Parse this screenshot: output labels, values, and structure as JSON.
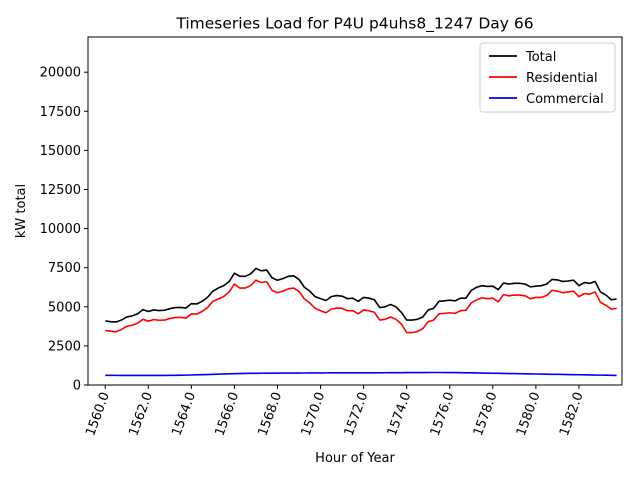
{
  "chart_data": {
    "type": "line",
    "title": "Timeseries Load for P4U p4uhs8_1247  Day 66",
    "xlabel": "Hour of Year",
    "ylabel": "kW total",
    "xlim": [
      1559.2,
      1584.0
    ],
    "ylim": [
      0,
      22250
    ],
    "xticks": [
      1560,
      1562,
      1564,
      1566,
      1568,
      1570,
      1572,
      1574,
      1576,
      1578,
      1580,
      1582
    ],
    "xtick_labels": [
      "1560.0",
      "1562.0",
      "1564.0",
      "1566.0",
      "1568.0",
      "1570.0",
      "1572.0",
      "1574.0",
      "1576.0",
      "1578.0",
      "1580.0",
      "1582.0"
    ],
    "yticks": [
      0,
      2500,
      5000,
      7500,
      10000,
      12500,
      15000,
      17500,
      20000
    ],
    "ytick_labels": [
      "0",
      "2500",
      "5000",
      "7500",
      "10000",
      "12500",
      "15000",
      "17500",
      "20000"
    ],
    "grid": false,
    "legend_position": "top-right",
    "x_start": 1560.0,
    "x_step": 0.25,
    "series": [
      {
        "name": "Total",
        "color": "#000000",
        "values": [
          4100,
          4050,
          4030,
          4150,
          4350,
          4420,
          4550,
          4820,
          4700,
          4800,
          4760,
          4780,
          4880,
          4950,
          4960,
          4920,
          5200,
          5180,
          5350,
          5600,
          6000,
          6200,
          6350,
          6600,
          7150,
          6950,
          6950,
          7100,
          7450,
          7300,
          7350,
          6850,
          6700,
          6800,
          6950,
          6980,
          6750,
          6250,
          6000,
          5650,
          5520,
          5400,
          5650,
          5720,
          5680,
          5520,
          5550,
          5350,
          5600,
          5550,
          5450,
          4950,
          5000,
          5150,
          5000,
          4650,
          4150,
          4150,
          4200,
          4350,
          4800,
          4900,
          5350,
          5380,
          5420,
          5380,
          5550,
          5550,
          6050,
          6250,
          6350,
          6300,
          6320,
          6100,
          6520,
          6450,
          6500,
          6500,
          6450,
          6280,
          6320,
          6350,
          6450,
          6750,
          6720,
          6620,
          6650,
          6700,
          6350,
          6550,
          6500,
          6620,
          5950,
          5750,
          5450,
          5500
        ]
      },
      {
        "name": "Residential",
        "color": "#ff0000",
        "values": [
          3480,
          3440,
          3400,
          3550,
          3750,
          3820,
          3950,
          4200,
          4080,
          4180,
          4140,
          4150,
          4250,
          4320,
          4320,
          4280,
          4550,
          4530,
          4700,
          4950,
          5350,
          5500,
          5650,
          5950,
          6450,
          6200,
          6200,
          6350,
          6700,
          6550,
          6600,
          6050,
          5900,
          6000,
          6150,
          6200,
          5980,
          5500,
          5250,
          4900,
          4750,
          4620,
          4850,
          4920,
          4900,
          4750,
          4750,
          4550,
          4800,
          4750,
          4650,
          4150,
          4200,
          4350,
          4200,
          3900,
          3350,
          3350,
          3420,
          3600,
          4050,
          4150,
          4550,
          4580,
          4620,
          4580,
          4750,
          4780,
          5250,
          5450,
          5580,
          5520,
          5550,
          5320,
          5780,
          5700,
          5750,
          5750,
          5700,
          5520,
          5600,
          5600,
          5720,
          6050,
          6000,
          5900,
          5950,
          6000,
          5650,
          5850,
          5800,
          5950,
          5280,
          5100,
          4850,
          4900
        ]
      },
      {
        "name": "Commercial",
        "color": "#0000ff",
        "values": [
          620,
          618,
          616,
          614,
          612,
          611,
          610,
          610,
          610,
          611,
          612,
          614,
          617,
          621,
          626,
          632,
          640,
          650,
          660,
          670,
          682,
          694,
          706,
          716,
          726,
          734,
          741,
          746,
          750,
          752,
          754,
          756,
          758,
          760,
          762,
          764,
          766,
          768,
          770,
          772,
          774,
          775,
          776,
          777,
          778,
          778,
          778,
          778,
          779,
          780,
          781,
          782,
          784,
          786,
          788,
          790,
          792,
          794,
          796,
          798,
          800,
          800,
          800,
          798,
          796,
          792,
          788,
          782,
          776,
          770,
          764,
          758,
          752,
          746,
          740,
          734,
          728,
          722,
          716,
          710,
          704,
          698,
          692,
          686,
          680,
          674,
          668,
          662,
          656,
          650,
          644,
          638,
          632,
          626,
          620,
          614
        ]
      }
    ]
  }
}
